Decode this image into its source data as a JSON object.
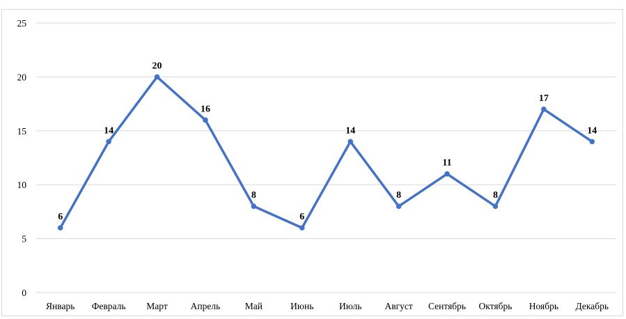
{
  "chart_data": {
    "type": "line",
    "title": "",
    "xlabel": "",
    "ylabel": "",
    "categories": [
      "Январь",
      "Февраль",
      "Март",
      "Апрель",
      "Май",
      "Июнь",
      "Июль",
      "Август",
      "Сентябрь",
      "Октябрь",
      "Ноябрь",
      "Декабрь"
    ],
    "series": [
      {
        "values": [
          6,
          14,
          20,
          16,
          8,
          6,
          14,
          8,
          11,
          8,
          17,
          14
        ],
        "color": "#4472c4"
      }
    ],
    "ylim": [
      0,
      25
    ],
    "yticks": [
      0,
      5,
      10,
      15,
      20,
      25
    ],
    "grid": true,
    "data_labels": true,
    "legend": "none"
  }
}
